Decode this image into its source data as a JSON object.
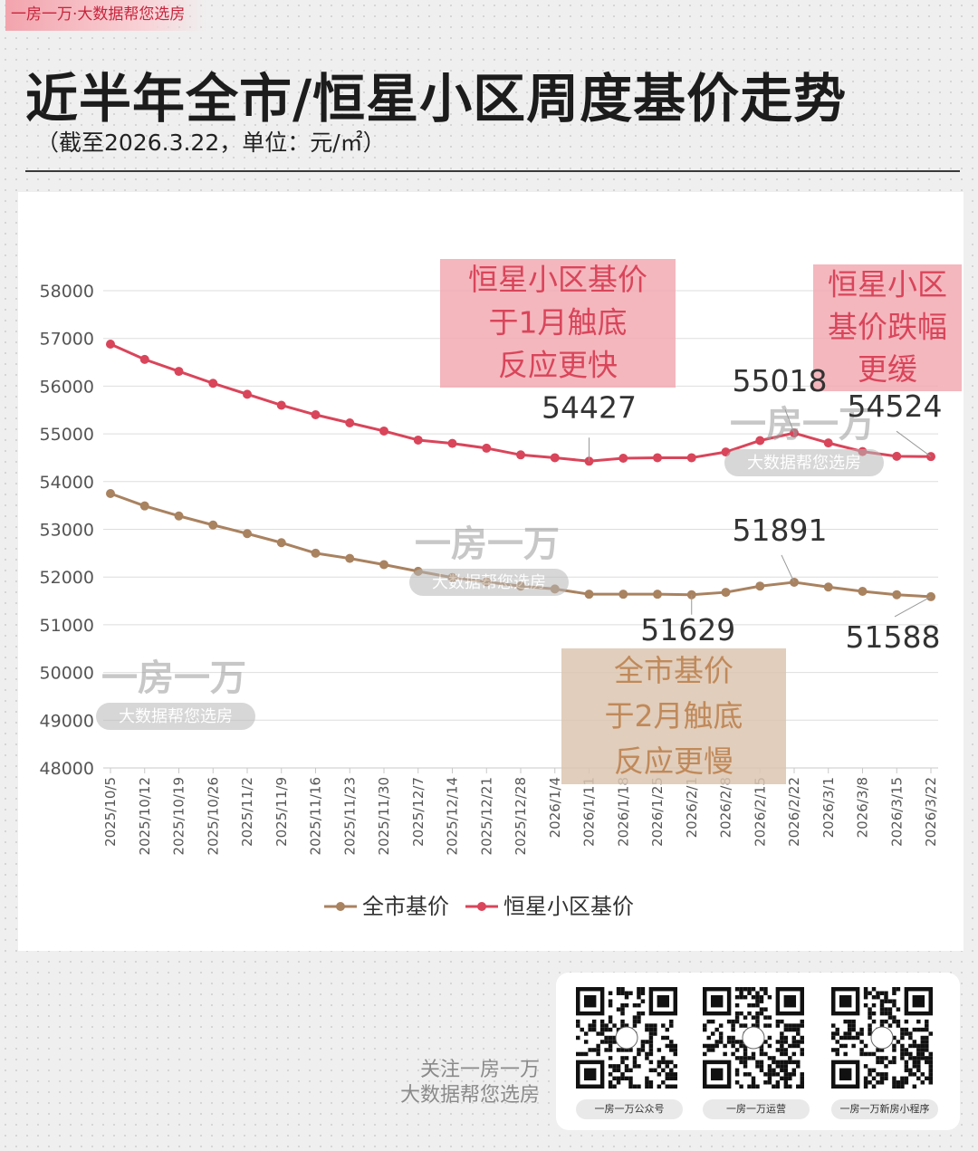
{
  "brand_tag": "一房一万·大数据帮您选房",
  "title": "近半年全市/恒星小区周度基价走势",
  "subtitle": "（截至2026.3.22，单位：元/㎡）",
  "watermark": {
    "brand": "一房一万",
    "slogan": "大数据帮您选房"
  },
  "colors": {
    "city": "#a98260",
    "hengxing": "#d9455a",
    "accent": "#c8243c"
  },
  "chart_data": {
    "type": "line",
    "title": "近半年全市/恒星小区周度基价走势",
    "subtitle": "（截至2026.3.22，单位：元/㎡）",
    "xlabel": "",
    "ylabel": "",
    "ylim": [
      48000,
      58000
    ],
    "yticks": [
      48000,
      49000,
      50000,
      51000,
      52000,
      53000,
      54000,
      55000,
      56000,
      57000,
      58000
    ],
    "grid": true,
    "legend_position": "bottom",
    "categories": [
      "2025/10/5",
      "2025/10/12",
      "2025/10/19",
      "2025/10/26",
      "2025/11/2",
      "2025/11/9",
      "2025/11/16",
      "2025/11/23",
      "2025/11/30",
      "2025/12/7",
      "2025/12/14",
      "2025/12/21",
      "2025/12/28",
      "2026/1/4",
      "2026/1/11",
      "2026/1/18",
      "2026/1/25",
      "2026/2/1",
      "2026/2/8",
      "2026/2/15",
      "2026/2/22",
      "2026/3/1",
      "2026/3/8",
      "2026/3/15",
      "2026/3/22"
    ],
    "series": [
      {
        "name": "全市基价",
        "color": "#a98260",
        "values": [
          53750,
          53490,
          53280,
          53090,
          52910,
          52720,
          52500,
          52390,
          52260,
          52120,
          51990,
          51900,
          51810,
          51750,
          51640,
          51640,
          51640,
          51629,
          51680,
          51810,
          51891,
          51790,
          51700,
          51630,
          51588
        ]
      },
      {
        "name": "恒星小区基价",
        "color": "#d9455a",
        "values": [
          56880,
          56560,
          56310,
          56060,
          55830,
          55600,
          55400,
          55230,
          55060,
          54870,
          54800,
          54700,
          54560,
          54500,
          54427,
          54490,
          54500,
          54500,
          54620,
          54860,
          55018,
          54810,
          54630,
          54530,
          54524
        ]
      }
    ],
    "point_labels": [
      {
        "series": 1,
        "index": 14,
        "text": "54427"
      },
      {
        "series": 1,
        "index": 20,
        "text": "55018"
      },
      {
        "series": 1,
        "index": 24,
        "text": "54524"
      },
      {
        "series": 0,
        "index": 17,
        "text": "51629"
      },
      {
        "series": 0,
        "index": 20,
        "text": "51891"
      },
      {
        "series": 0,
        "index": 24,
        "text": "51588"
      }
    ],
    "annotations": [
      {
        "lines": [
          "恒星小区基价",
          "于1月触底",
          "反应更快"
        ],
        "color": "#d9455a",
        "fill": "#f2aab3"
      },
      {
        "lines": [
          "恒星小区",
          "基价跌幅",
          "更缓"
        ],
        "color": "#d9455a",
        "fill": "#f2aab3"
      },
      {
        "lines": [
          "全市基价",
          "于2月触底",
          "反应更慢"
        ],
        "color": "#c0895a",
        "fill": "#dcc6b0"
      }
    ]
  },
  "footer": {
    "follow_line1": "关注一房一万",
    "follow_line2": "大数据帮您选房",
    "qr_captions": [
      "一房一万公众号",
      "一房一万运营",
      "一房一万新房小程序"
    ]
  }
}
